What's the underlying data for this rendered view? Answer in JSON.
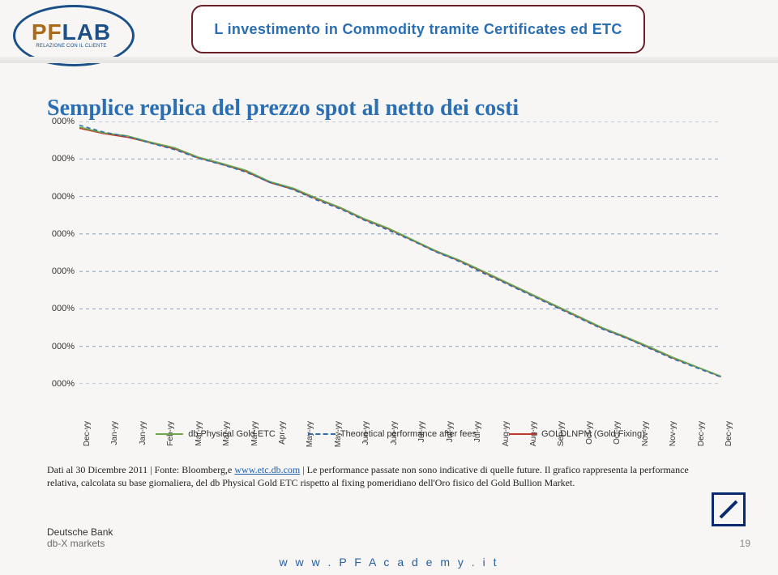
{
  "header": {
    "logo": {
      "big_pf": "PF",
      "big_lab": "LAB",
      "small": "RELAZIONE CON IL CLIENTE"
    },
    "title": "L investimento in Commodity tramite Certificates ed ETC"
  },
  "subtitle": "Semplice replica del prezzo spot al netto dei costi",
  "chart": {
    "type": "line",
    "ylim": [
      0,
      7
    ],
    "ytick_labels": [
      "000%",
      "000%",
      "000%",
      "000%",
      "000%",
      "000%",
      "000%",
      "000%"
    ],
    "x_labels": [
      "Dec-yy",
      "Jan-yy",
      "Jan-yy",
      "Feb-yy",
      "Mar-yy",
      "Mar-yy",
      "Mar-yy",
      "Apr-yy",
      "May-yy",
      "May-yy",
      "Jun-yy",
      "Jun-yy",
      "Jul-yy",
      "Jul-yy",
      "Jul-yy",
      "Aug-yy",
      "Aug-yy",
      "Sep-yy",
      "Oct-yy",
      "Oct-yy",
      "Nov-yy",
      "Nov-yy",
      "Dec-yy",
      "Dec-yy"
    ],
    "grid_color": "#8aa0c0",
    "grid_dash": "4,4",
    "background_color": "#ffffff00",
    "series": {
      "etc": {
        "label": "db Physical Gold ETC",
        "color": "#6aa84f",
        "width": 1.6,
        "dash": "",
        "values": [
          6.85,
          6.7,
          6.62,
          6.45,
          6.3,
          6.05,
          5.88,
          5.7,
          5.4,
          5.22,
          4.95,
          4.7,
          4.4,
          4.15,
          3.85,
          3.55,
          3.3,
          3.0,
          2.7,
          2.4,
          2.1,
          1.8,
          1.5,
          1.25,
          0.98,
          0.7,
          0.45,
          0.2
        ]
      },
      "theo": {
        "label": "Theoretical performance after fees",
        "color": "#2a6fb3",
        "width": 1.6,
        "dash": "5,4",
        "values": [
          6.9,
          6.72,
          6.6,
          6.42,
          6.25,
          6.02,
          5.85,
          5.65,
          5.38,
          5.18,
          4.9,
          4.66,
          4.36,
          4.1,
          3.82,
          3.52,
          3.26,
          2.95,
          2.66,
          2.36,
          2.06,
          1.76,
          1.46,
          1.22,
          0.94,
          0.66,
          0.42,
          0.18
        ]
      },
      "gold": {
        "label": "GOLDLNPM (Gold Fixing)",
        "color": "#c0392b",
        "width": 1.6,
        "dash": "",
        "values": [
          6.82,
          6.68,
          6.58,
          6.43,
          6.27,
          6.03,
          5.86,
          5.67,
          5.37,
          5.19,
          4.93,
          4.68,
          4.38,
          4.13,
          3.83,
          3.53,
          3.28,
          2.98,
          2.68,
          2.38,
          2.08,
          1.78,
          1.48,
          1.23,
          0.96,
          0.68,
          0.44,
          0.19
        ]
      }
    },
    "label_fontsize": 11
  },
  "note": {
    "prefix": "Dati al 30 Dicembre 2011 | Fonte: Bloomberg,e ",
    "link1": "www.etc.db.com",
    "mid": " | Le performance passate non sono indicative di quelle future. Il grafico rappresenta la performance relativa, calcolata su base giornaliera, del db Physical Gold ETC rispetto al fixing pomeridiano dell'Oro fisico del Gold Bullion Market."
  },
  "deutsche": {
    "l1": "Deutsche Bank",
    "l2": "db-X markets"
  },
  "footer_url": "w w w . P F A c a d e m y . i t",
  "page_num": "19"
}
